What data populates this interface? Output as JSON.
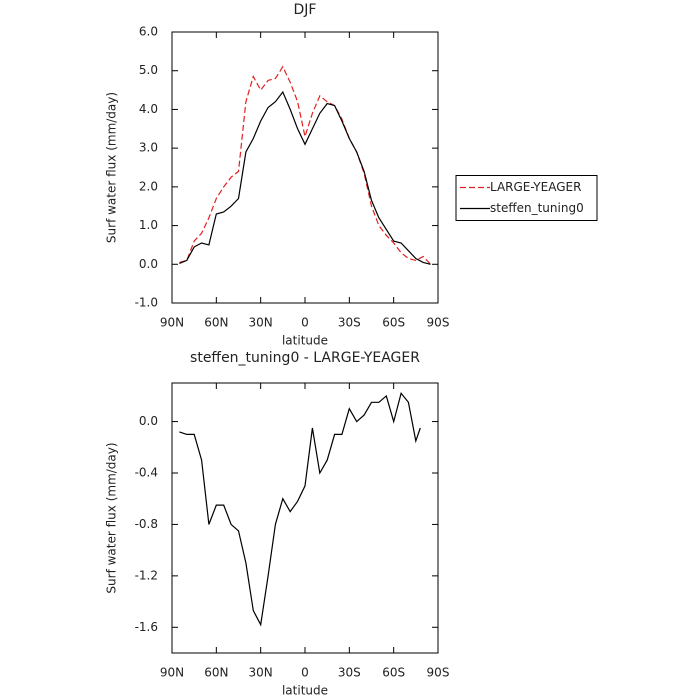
{
  "chart_data": [
    {
      "type": "line",
      "title": "DJF",
      "xlabel": "latitude",
      "ylabel": "Surf water flux (mm/day)",
      "x": [
        85,
        80,
        75,
        70,
        65,
        60,
        55,
        50,
        45,
        40,
        35,
        30,
        25,
        20,
        15,
        10,
        5,
        0,
        -5,
        -10,
        -15,
        -20,
        -25,
        -30,
        -35,
        -40,
        -45,
        -50,
        -55,
        -60,
        -65,
        -70,
        -75,
        -80,
        -85
      ],
      "series": [
        {
          "name": "LARGE-YEAGER",
          "color": "#e02020",
          "linestyle": "dashed",
          "values": [
            0.05,
            0.1,
            0.6,
            0.8,
            1.2,
            1.7,
            2.0,
            2.25,
            2.4,
            4.2,
            4.85,
            4.5,
            4.75,
            4.8,
            5.1,
            4.7,
            4.2,
            3.3,
            3.9,
            4.35,
            4.2,
            4.1,
            3.75,
            3.25,
            2.9,
            2.35,
            1.5,
            1.0,
            0.75,
            0.55,
            0.3,
            0.15,
            0.1,
            0.2,
            0.0
          ]
        },
        {
          "name": "steffen_tuning0",
          "color": "#000000",
          "linestyle": "solid",
          "values": [
            0.02,
            0.1,
            0.45,
            0.55,
            0.5,
            1.3,
            1.35,
            1.5,
            1.7,
            2.9,
            3.25,
            3.7,
            4.05,
            4.2,
            4.45,
            4.0,
            3.5,
            3.1,
            3.5,
            3.9,
            4.15,
            4.1,
            3.7,
            3.25,
            2.9,
            2.4,
            1.65,
            1.2,
            0.9,
            0.6,
            0.55,
            0.35,
            0.15,
            0.05,
            0.0
          ]
        }
      ],
      "xlim": [
        90,
        -90
      ],
      "xticks": [
        {
          "value": 90,
          "label": "90N"
        },
        {
          "value": 60,
          "label": "60N"
        },
        {
          "value": 30,
          "label": "30N"
        },
        0,
        {
          "value": -30,
          "label": "30S"
        },
        {
          "value": -60,
          "label": "60S"
        },
        {
          "value": -90,
          "label": "90S"
        }
      ],
      "ylim": [
        -1,
        6
      ],
      "yticks": [
        {
          "value": -1,
          "label": "-1.0"
        },
        {
          "value": 0,
          "label": "0.0"
        },
        {
          "value": 1,
          "label": "1.0"
        },
        {
          "value": 2,
          "label": "2.0"
        },
        {
          "value": 3,
          "label": "3.0"
        },
        {
          "value": 4,
          "label": "4.0"
        },
        {
          "value": 5,
          "label": "5.0"
        },
        {
          "value": 6,
          "label": "6.0"
        }
      ],
      "legend": "right"
    },
    {
      "type": "line",
      "title": "steffen_tuning0 - LARGE-YEAGER",
      "xlabel": "latitude",
      "ylabel": "Surf water flux (mm/day)",
      "x": [
        85,
        80,
        75,
        70,
        65,
        60,
        55,
        50,
        45,
        40,
        35,
        30,
        25,
        20,
        15,
        10,
        5,
        0,
        -5,
        -10,
        -15,
        -20,
        -25,
        -30,
        -35,
        -40,
        -45,
        -50,
        -55,
        -60,
        -65,
        -70,
        -75,
        -78
      ],
      "values": [
        -0.08,
        -0.1,
        -0.1,
        -0.3,
        -0.8,
        -0.65,
        -0.65,
        -0.8,
        -0.85,
        -1.1,
        -1.47,
        -1.58,
        -1.2,
        -0.8,
        -0.6,
        -0.7,
        -0.62,
        -0.5,
        -0.05,
        -0.4,
        -0.3,
        -0.1,
        -0.1,
        0.1,
        0.0,
        0.05,
        0.15,
        0.15,
        0.2,
        0.0,
        0.22,
        0.15,
        -0.15,
        -0.05
      ],
      "color": "#000000",
      "xlim": [
        90,
        -90
      ],
      "xticks": [
        {
          "value": 90,
          "label": "90N"
        },
        {
          "value": 60,
          "label": "60N"
        },
        {
          "value": 30,
          "label": "30N"
        },
        0,
        {
          "value": -30,
          "label": "30S"
        },
        {
          "value": -60,
          "label": "60S"
        },
        {
          "value": -90,
          "label": "90S"
        }
      ],
      "ylim": [
        -1.8,
        0.3
      ],
      "yticks": [
        {
          "value": -1.6,
          "label": "-1.6"
        },
        {
          "value": -1.2,
          "label": "-1.2"
        },
        {
          "value": -0.8,
          "label": "-0.8"
        },
        {
          "value": -0.4,
          "label": "-0.4"
        },
        {
          "value": 0,
          "label": "0.0"
        }
      ]
    }
  ]
}
